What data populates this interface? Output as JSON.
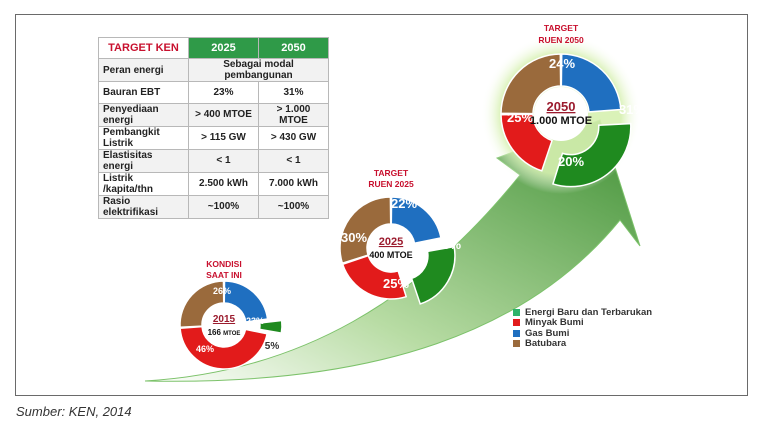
{
  "source_note": "Sumber: KEN, 2014",
  "colors": {
    "ebt": "#1f8a1f",
    "minyak": "#e21b1b",
    "gas": "#1f6fc0",
    "batubara": "#9a6a3c",
    "arrow": "#5fae4b"
  },
  "target_table": {
    "header": [
      "TARGET KEN",
      "2025",
      "2050"
    ],
    "rows": [
      {
        "label": "Peran energi",
        "merged": "Sebagai modal pembangunan"
      },
      {
        "label": "Bauran EBT",
        "v2025": "23%",
        "v2050": "31%"
      },
      {
        "label": "Penyediaan energi",
        "v2025": "> 400 MTOE",
        "v2050": "> 1.000 MTOE"
      },
      {
        "label": "Pembangkit Listrik",
        "v2025": "> 115 GW",
        "v2050": "> 430 GW"
      },
      {
        "label": "Elastisitas energi",
        "v2025": "< 1",
        "v2050": "< 1"
      },
      {
        "label": "Listrik /kapita/thn",
        "v2025": "2.500 kWh",
        "v2050": "7.000 kWh"
      },
      {
        "label": "Rasio elektrifikasi",
        "v2025": "~100%",
        "v2050": "~100%"
      }
    ]
  },
  "legend": [
    {
      "label": "Energi Baru dan Terbarukan",
      "key": "ebt"
    },
    {
      "label": "Minyak Bumi",
      "key": "minyak"
    },
    {
      "label": "Gas Bumi",
      "key": "gas"
    },
    {
      "label": "Batubara",
      "key": "batubara"
    }
  ],
  "chart_data": [
    {
      "type": "pie",
      "caption": [
        "KONDISI",
        "SAAT INI"
      ],
      "year": "2015",
      "total_value": "166",
      "total_unit": "MTOE",
      "slices": [
        {
          "key": "gas",
          "value": 23,
          "label": "23%"
        },
        {
          "key": "ebt",
          "value": 5,
          "label": "5%",
          "exploded": true
        },
        {
          "key": "minyak",
          "value": 46,
          "label": "46%"
        },
        {
          "key": "batubara",
          "value": 26,
          "label": "26%"
        }
      ]
    },
    {
      "type": "pie",
      "caption": [
        "TARGET",
        "RUEN 2025"
      ],
      "year": "2025",
      "total_value": "400",
      "total_unit": "MTOE",
      "slices": [
        {
          "key": "gas",
          "value": 22,
          "label": "22%"
        },
        {
          "key": "ebt",
          "value": 23,
          "label": "23%",
          "exploded": true
        },
        {
          "key": "minyak",
          "value": 25,
          "label": "25%"
        },
        {
          "key": "batubara",
          "value": 30,
          "label": "30%"
        }
      ]
    },
    {
      "type": "pie",
      "caption": [
        "TARGET",
        "RUEN 2050"
      ],
      "year": "2050",
      "total_value": "1.000",
      "total_unit": "MTOE",
      "slices": [
        {
          "key": "gas",
          "value": 24,
          "label": "24%"
        },
        {
          "key": "ebt",
          "value": 31,
          "label": "31%",
          "exploded": true
        },
        {
          "key": "minyak",
          "value": 20,
          "label": "20%"
        },
        {
          "key": "batubara",
          "value": 25,
          "label": "25%"
        }
      ]
    }
  ]
}
